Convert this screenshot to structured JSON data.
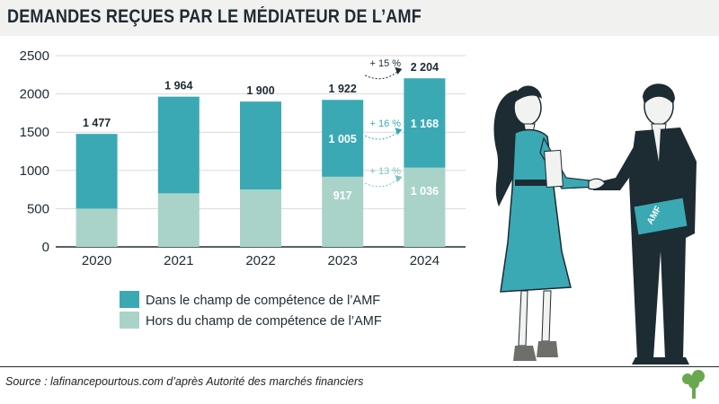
{
  "title": "DEMANDES REÇUES PAR LE MÉDIATEUR DE L’AMF",
  "source": "Source : lafinancepourtous.com d’après Autorité des marchés financiers",
  "colors": {
    "in_scope": "#3aa9b4",
    "out_scope": "#a9d3c9",
    "text": "#1d2b33",
    "arrow_teal": "#3aa9b4"
  },
  "chart_data": {
    "type": "bar",
    "stacked": true,
    "categories": [
      "2020",
      "2021",
      "2022",
      "2023",
      "2024"
    ],
    "series": [
      {
        "name": "Hors du champ de compétence de l’AMF",
        "values": [
          500,
          700,
          750,
          917,
          1036
        ]
      },
      {
        "name": "Dans le champ de compétence de l’AMF",
        "values": [
          977,
          1264,
          1150,
          1005,
          1168
        ]
      }
    ],
    "totals": [
      "1 477",
      "1 964",
      "1 900",
      "1 922",
      "2 204"
    ],
    "inner_labels_top": [
      "",
      "",
      "",
      "1 005",
      "1 168"
    ],
    "inner_labels_bottom": [
      "",
      "",
      "",
      "917",
      "1 036"
    ],
    "yticks": [
      "0",
      "500",
      "1000",
      "1500",
      "2000",
      "2500"
    ],
    "ylim": [
      0,
      2500
    ],
    "annotations": [
      "+ 15 %",
      "+ 16 %",
      "+ 13 %"
    ],
    "legend": [
      "Dans le champ de compétence de l’AMF",
      "Hors du champ de compétence de l’AMF"
    ]
  },
  "illustration": {
    "folder_label": "AMF"
  }
}
